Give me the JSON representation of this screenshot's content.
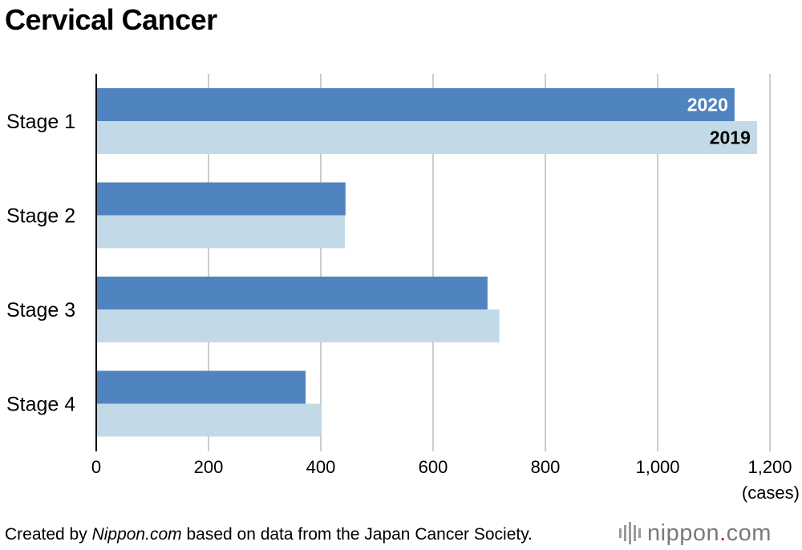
{
  "title": "Cervical Cancer",
  "footer": {
    "prefix": "Created by ",
    "source": "Nippon.com",
    "suffix": " based on data from the Japan Cancer Society."
  },
  "logo": {
    "left": "nippon",
    "dot": ".",
    "right": "com"
  },
  "colors": {
    "series_2020": "#5084c0",
    "series_2019": "#c2d9e8",
    "grid": "#cccccc"
  },
  "chart_data": {
    "type": "bar",
    "orientation": "horizontal",
    "categories": [
      "Stage 1",
      "Stage 2",
      "Stage 3",
      "Stage 4"
    ],
    "series": [
      {
        "name": "2020",
        "values": [
          1137,
          444,
          697,
          373
        ]
      },
      {
        "name": "2019",
        "values": [
          1177,
          443,
          718,
          400
        ]
      }
    ],
    "xlim": [
      0,
      1200
    ],
    "xticks": [
      0,
      200,
      400,
      600,
      800,
      1000,
      1200
    ],
    "xtick_labels": [
      "0",
      "200",
      "400",
      "600",
      "800",
      "1,000",
      "1,200"
    ],
    "xlabel": "(cases)",
    "ylabel": "",
    "grid": true
  }
}
